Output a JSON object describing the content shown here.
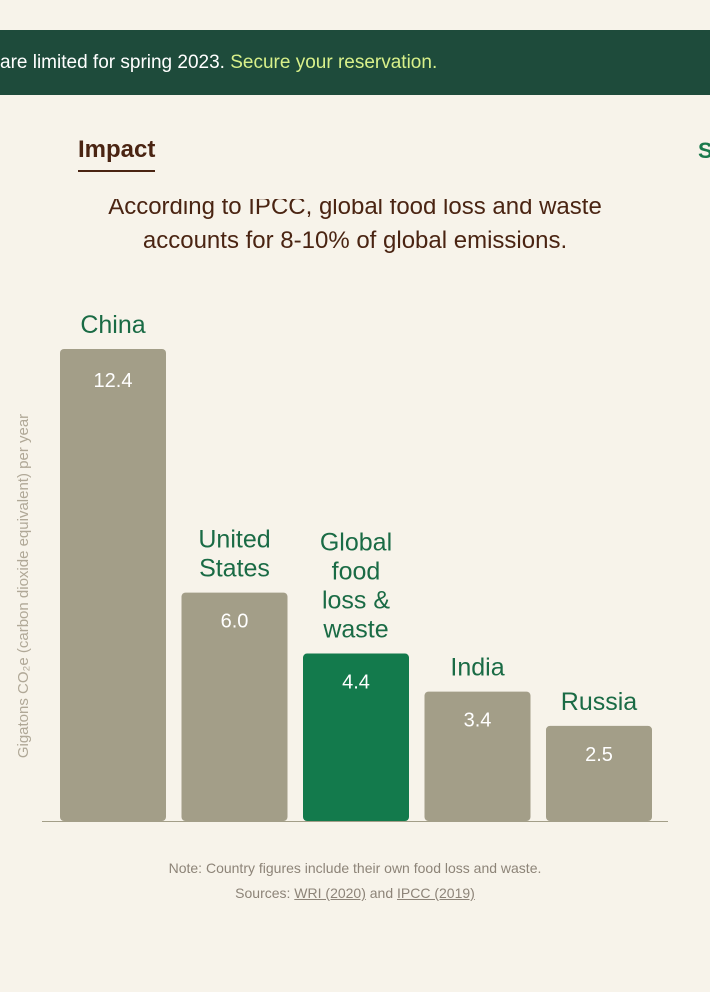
{
  "banner": {
    "text": "are limited for spring 2023. ",
    "cta": "Secure your reservation."
  },
  "tabs": {
    "active": "Impact",
    "next": "S"
  },
  "headline": {
    "line1": "According to IPCC, global food loss and waste",
    "line2": "accounts for 8-10% of global emissions."
  },
  "colors": {
    "banner_bg": "#1e4b3b",
    "cta": "#d8f08a",
    "brand_brown": "#4a2412",
    "bar_default": "#a39e88",
    "bar_highlight": "#137a4c",
    "label_green": "#1a6b45"
  },
  "chart_data": {
    "type": "bar",
    "categories": [
      "China",
      "United States",
      "Global food loss & waste",
      "India",
      "Russia"
    ],
    "category_label_lines": [
      [
        "China"
      ],
      [
        "United",
        "States"
      ],
      [
        "Global",
        "food",
        "loss &",
        "waste"
      ],
      [
        "India"
      ],
      [
        "Russia"
      ]
    ],
    "values": [
      12.4,
      6.0,
      4.4,
      3.4,
      2.5
    ],
    "value_labels": [
      "12.4",
      "6.0",
      "4.4",
      "3.4",
      "2.5"
    ],
    "highlight_index": 2,
    "ylabel": "Gigatons CO₂e (carbon dioxide equivalent) per year",
    "ylim": [
      0,
      12.4
    ],
    "grid": false
  },
  "notes": {
    "line1": "Note: Country figures include their own food loss and waste.",
    "sources_prefix": "Sources: ",
    "source1": "WRI (2020)",
    "and": " and ",
    "source2": "IPCC (2019)"
  }
}
